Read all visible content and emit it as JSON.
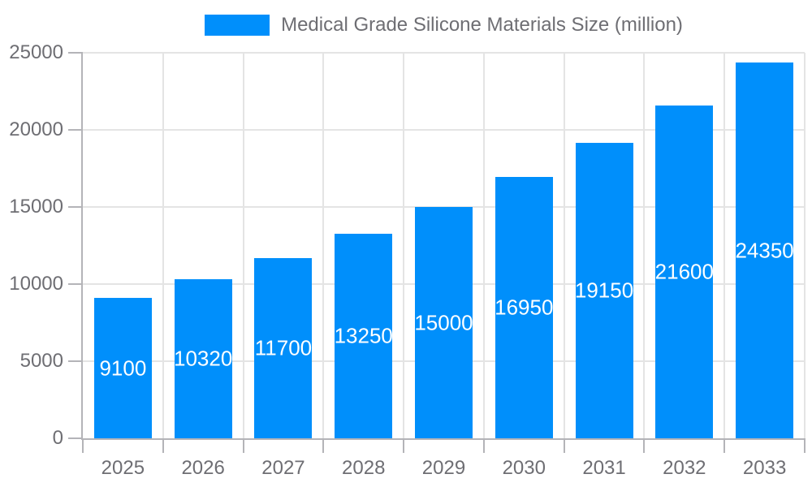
{
  "chart_data": {
    "type": "bar",
    "title": "Medical Grade Silicone Materials Size (million)",
    "categories": [
      "2025",
      "2026",
      "2027",
      "2028",
      "2029",
      "2030",
      "2031",
      "2032",
      "2033"
    ],
    "series": [
      {
        "name": "Medical Grade Silicone Materials Size (million)",
        "values": [
          9100,
          10320,
          11700,
          13250,
          15000,
          16950,
          19150,
          21600,
          24350
        ],
        "color": "#008FFB"
      }
    ],
    "xlabel": "",
    "ylabel": "",
    "ylim": [
      0,
      25000
    ],
    "yticks": [
      0,
      5000,
      10000,
      15000,
      20000,
      25000
    ],
    "grid": true,
    "legend_position": "top",
    "value_labels": {
      "position": "inside-middle",
      "color": "#FFFFFF"
    },
    "axis_label_color": "#6E6E73",
    "grid_color": "#E4E4E4",
    "axis_line_color": "#B4B4B8",
    "background": "#FFFFFF"
  }
}
